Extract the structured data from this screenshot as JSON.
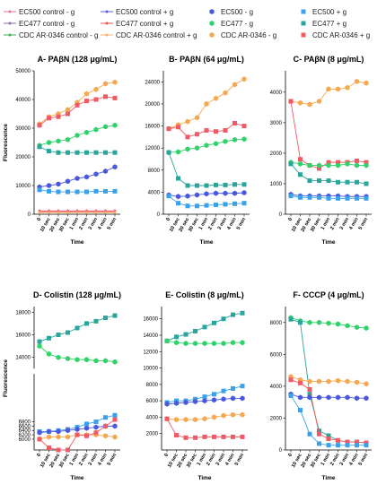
{
  "series_meta": [
    {
      "key": "ec500_ctrl_m",
      "label": "EC500 control - g",
      "color": "#ee6f9a",
      "marker": "none"
    },
    {
      "key": "ec500_ctrl_p",
      "label": "EC500 control + g",
      "color": "#5b5bd6",
      "marker": "none"
    },
    {
      "key": "ec500_m",
      "label": "EC500 - g",
      "color": "#4a58e0",
      "marker": "hex"
    },
    {
      "key": "ec500_p",
      "label": "EC500 + g",
      "color": "#3aa2ea",
      "marker": "square"
    },
    {
      "key": "ec477_ctrl_m",
      "label": "EC477 control - g",
      "color": "#8a6fa8",
      "marker": "none"
    },
    {
      "key": "ec477_ctrl_p",
      "label": "EC477 control + g",
      "color": "#e9554f",
      "marker": "none"
    },
    {
      "key": "ec477_m",
      "label": "EC477 - g",
      "color": "#2fd36a",
      "marker": "hex"
    },
    {
      "key": "ec477_p",
      "label": "EC477 + g",
      "color": "#2aa59b",
      "marker": "square"
    },
    {
      "key": "cdc_ctrl_m",
      "label": "CDC AR-0346 control - g",
      "color": "#3dae52",
      "marker": "none"
    },
    {
      "key": "cdc_ctrl_p",
      "label": "CDC AR-0346 control + g",
      "color": "#f6b46a",
      "marker": "none"
    },
    {
      "key": "cdc_m",
      "label": "CDC AR-0346 - g",
      "color": "#f5a84f",
      "marker": "hex"
    },
    {
      "key": "cdc_p",
      "label": "CDC AR-0346 + g",
      "color": "#ef5a64",
      "marker": "square"
    }
  ],
  "legend_layout": [
    [
      "ec500_ctrl_m",
      "ec500_ctrl_p",
      "ec500_m",
      "ec500_p"
    ],
    [
      "ec477_ctrl_m",
      "ec477_ctrl_p",
      "ec477_m",
      "ec477_p"
    ],
    [
      "cdc_ctrl_m",
      "cdc_ctrl_p",
      "cdc_m",
      "cdc_p"
    ]
  ],
  "chart_data": [
    {
      "id": "A",
      "type": "line",
      "title": "A- PAβN (128 μg/mL)",
      "xlabel": "Time",
      "ylabel": "Fluorescence",
      "categories": [
        "0",
        "10 sec",
        "20 sec",
        "30 sec",
        "1 min",
        "2 min",
        "3 min",
        "4 min",
        "5 min"
      ],
      "ylim": [
        0,
        50000
      ],
      "yticks": [
        0,
        10000,
        20000,
        30000,
        40000,
        50000
      ],
      "series": [
        {
          "key": "cdc_m",
          "values": [
            31500,
            34000,
            35000,
            36500,
            39000,
            42000,
            43500,
            45500,
            46000
          ]
        },
        {
          "key": "cdc_p",
          "values": [
            31000,
            33500,
            34000,
            35000,
            38000,
            39500,
            40000,
            41000,
            40500
          ]
        },
        {
          "key": "ec477_m",
          "values": [
            24000,
            25000,
            25500,
            26000,
            27500,
            28500,
            29500,
            30500,
            31000
          ]
        },
        {
          "key": "ec477_p",
          "values": [
            23500,
            22000,
            21500,
            21500,
            21500,
            21500,
            21500,
            21500,
            21500
          ]
        },
        {
          "key": "ec500_m",
          "values": [
            9500,
            10000,
            10500,
            11500,
            12500,
            13000,
            14000,
            15000,
            16500
          ]
        },
        {
          "key": "ec500_p",
          "values": [
            8500,
            8000,
            7800,
            7800,
            7800,
            7800,
            8000,
            8000,
            8000
          ]
        },
        {
          "key": "ec500_ctrl_m",
          "values": [
            1200,
            1200,
            1200,
            1200,
            1200,
            1200,
            1200,
            1200,
            1200
          ]
        },
        {
          "key": "ec477_ctrl_p",
          "values": [
            900,
            900,
            900,
            900,
            900,
            900,
            900,
            900,
            900
          ]
        },
        {
          "key": "cdc_ctrl_p",
          "values": [
            600,
            600,
            600,
            600,
            600,
            600,
            600,
            600,
            600
          ]
        }
      ]
    },
    {
      "id": "B",
      "type": "line",
      "title": "B- PAβN (64 μg/mL)",
      "xlabel": "Time",
      "ylabel": "",
      "categories": [
        "0",
        "10 sec",
        "20 sec",
        "30 sec",
        "1 min",
        "2 min",
        "3 min",
        "4 min",
        "5 min"
      ],
      "ylim": [
        0,
        26000
      ],
      "yticks": [
        0,
        4000,
        8000,
        12000,
        16000,
        20000,
        24000
      ],
      "series": [
        {
          "key": "cdc_m",
          "values": [
            15500,
            16200,
            16800,
            17500,
            20000,
            21000,
            22000,
            23500,
            24500
          ]
        },
        {
          "key": "cdc_p",
          "values": [
            15500,
            15800,
            14000,
            14500,
            15200,
            15000,
            15200,
            16500,
            16000
          ]
        },
        {
          "key": "ec477_m",
          "values": [
            11200,
            11300,
            11800,
            12000,
            12500,
            12800,
            13200,
            13500,
            13600
          ]
        },
        {
          "key": "ec477_p",
          "values": [
            11200,
            6500,
            5200,
            5200,
            5200,
            5300,
            5300,
            5400,
            5400
          ]
        },
        {
          "key": "ec500_m",
          "values": [
            3500,
            3200,
            3300,
            3500,
            3700,
            3800,
            3800,
            3800,
            3900
          ]
        },
        {
          "key": "ec500_p",
          "values": [
            3300,
            2000,
            1500,
            1500,
            1600,
            1700,
            1800,
            1900,
            2000
          ]
        }
      ]
    },
    {
      "id": "C",
      "type": "line",
      "title": "C- PAβN (8 μg/mL)",
      "xlabel": "Time",
      "ylabel": "",
      "categories": [
        "0",
        "10 sec",
        "20 sec",
        "30 sec",
        "1 min",
        "2 min",
        "3 min",
        "4 min",
        "5 min"
      ],
      "ylim": [
        0,
        4700
      ],
      "yticks": [
        0,
        1000,
        2000,
        3000,
        4000
      ],
      "series": [
        {
          "key": "cdc_m",
          "values": [
            3700,
            3650,
            3600,
            3700,
            4100,
            4100,
            4150,
            4350,
            4300
          ]
        },
        {
          "key": "cdc_p",
          "values": [
            3700,
            1800,
            1600,
            1500,
            1700,
            1700,
            1700,
            1750,
            1700
          ]
        },
        {
          "key": "ec477_m",
          "values": [
            1700,
            1650,
            1600,
            1600,
            1600,
            1600,
            1650,
            1600,
            1600
          ]
        },
        {
          "key": "ec477_p",
          "values": [
            1650,
            1300,
            1100,
            1100,
            1100,
            1050,
            1050,
            1050,
            1000
          ]
        },
        {
          "key": "ec500_m",
          "values": [
            650,
            600,
            600,
            600,
            600,
            600,
            580,
            580,
            580
          ]
        },
        {
          "key": "ec500_p",
          "values": [
            600,
            550,
            550,
            550,
            520,
            520,
            520,
            520,
            520
          ]
        }
      ]
    },
    {
      "id": "D",
      "type": "line",
      "title": "D- Colistin (128 μg/mL)",
      "xlabel": "Time",
      "ylabel": "Fluorescence",
      "categories": [
        "0",
        "10 sec",
        "20 sec",
        "30 sec",
        "1 min",
        "2 min",
        "3 min",
        "4 min",
        "5 min"
      ],
      "ylim": [
        5000,
        18500
      ],
      "yticks": [
        6000,
        6200,
        6400,
        6600,
        6800,
        14000,
        16000,
        18000
      ],
      "ybreak": {
        "low": [
          5500,
          9000
        ],
        "high": [
          13000,
          18500
        ]
      },
      "series": [
        {
          "key": "ec477_p",
          "values": [
            15400,
            15700,
            16000,
            16200,
            16600,
            17000,
            17200,
            17500,
            17700
          ]
        },
        {
          "key": "ec477_m",
          "values": [
            15000,
            14300,
            14000,
            13900,
            13800,
            13800,
            13700,
            13700,
            13600
          ]
        },
        {
          "key": "ec500_p",
          "values": [
            6350,
            6350,
            6400,
            6450,
            6550,
            6700,
            6800,
            7000,
            7100
          ]
        },
        {
          "key": "ec500_m",
          "values": [
            6300,
            6350,
            6350,
            6400,
            6450,
            6500,
            6550,
            6600,
            6600
          ]
        },
        {
          "key": "cdc_m",
          "values": [
            6000,
            6100,
            6100,
            6100,
            6200,
            6200,
            6200,
            6150,
            6100
          ]
        },
        {
          "key": "cdc_p",
          "values": [
            6000,
            5600,
            5350,
            5350,
            6200,
            6150,
            6300,
            6600,
            6900
          ]
        }
      ]
    },
    {
      "id": "E",
      "type": "line",
      "title": "E- Colistin (8 μg/mL)",
      "xlabel": "Time",
      "ylabel": "",
      "categories": [
        "0",
        "10 sec",
        "20 sec",
        "30 sec",
        "1 min",
        "2 min",
        "3 min",
        "4 min",
        "5 min"
      ],
      "ylim": [
        0,
        17500
      ],
      "yticks": [
        2000,
        4000,
        6000,
        8000,
        10000,
        12000,
        14000,
        16000
      ],
      "series": [
        {
          "key": "ec477_p",
          "values": [
            13300,
            13800,
            14100,
            14500,
            15000,
            15500,
            16000,
            16500,
            16700
          ]
        },
        {
          "key": "ec477_m",
          "values": [
            13300,
            13100,
            13000,
            13000,
            13000,
            13000,
            13000,
            13100,
            13100
          ]
        },
        {
          "key": "ec500_p",
          "values": [
            5800,
            6000,
            6000,
            6200,
            6500,
            6800,
            7200,
            7500,
            7800
          ]
        },
        {
          "key": "ec500_m",
          "values": [
            5600,
            5700,
            5800,
            5900,
            6000,
            6100,
            6200,
            6300,
            6300
          ]
        },
        {
          "key": "cdc_m",
          "values": [
            3800,
            3700,
            3700,
            3700,
            3800,
            4000,
            4200,
            4300,
            4300
          ]
        },
        {
          "key": "cdc_p",
          "values": [
            3800,
            1800,
            1500,
            1500,
            1600,
            1600,
            1600,
            1600,
            1600
          ]
        }
      ]
    },
    {
      "id": "F",
      "type": "line",
      "title": "F- CCCP (4 μg/mL)",
      "xlabel": "Time",
      "ylabel": "",
      "categories": [
        "0",
        "10 sec",
        "20 sec",
        "30 sec",
        "1 min",
        "2 min",
        "3 min",
        "4 min",
        "5 min"
      ],
      "ylim": [
        0,
        9000
      ],
      "yticks": [
        0,
        2000,
        4000,
        6000,
        8000
      ],
      "series": [
        {
          "key": "ec477_m",
          "values": [
            8300,
            8100,
            8000,
            8000,
            7950,
            7900,
            7800,
            7700,
            7650
          ]
        },
        {
          "key": "ec477_p",
          "values": [
            8200,
            8000,
            3500,
            1200,
            900,
            600,
            500,
            500,
            450
          ]
        },
        {
          "key": "cdc_m",
          "values": [
            4600,
            4400,
            4300,
            4300,
            4300,
            4350,
            4300,
            4250,
            4150
          ]
        },
        {
          "key": "cdc_p",
          "values": [
            4400,
            4200,
            3800,
            1000,
            700,
            600,
            500,
            500,
            450
          ]
        },
        {
          "key": "ec500_m",
          "values": [
            3500,
            3300,
            3300,
            3300,
            3300,
            3300,
            3300,
            3250,
            3250
          ]
        },
        {
          "key": "ec500_p",
          "values": [
            3400,
            2500,
            1000,
            400,
            300,
            300,
            300,
            300,
            300
          ]
        }
      ]
    }
  ]
}
